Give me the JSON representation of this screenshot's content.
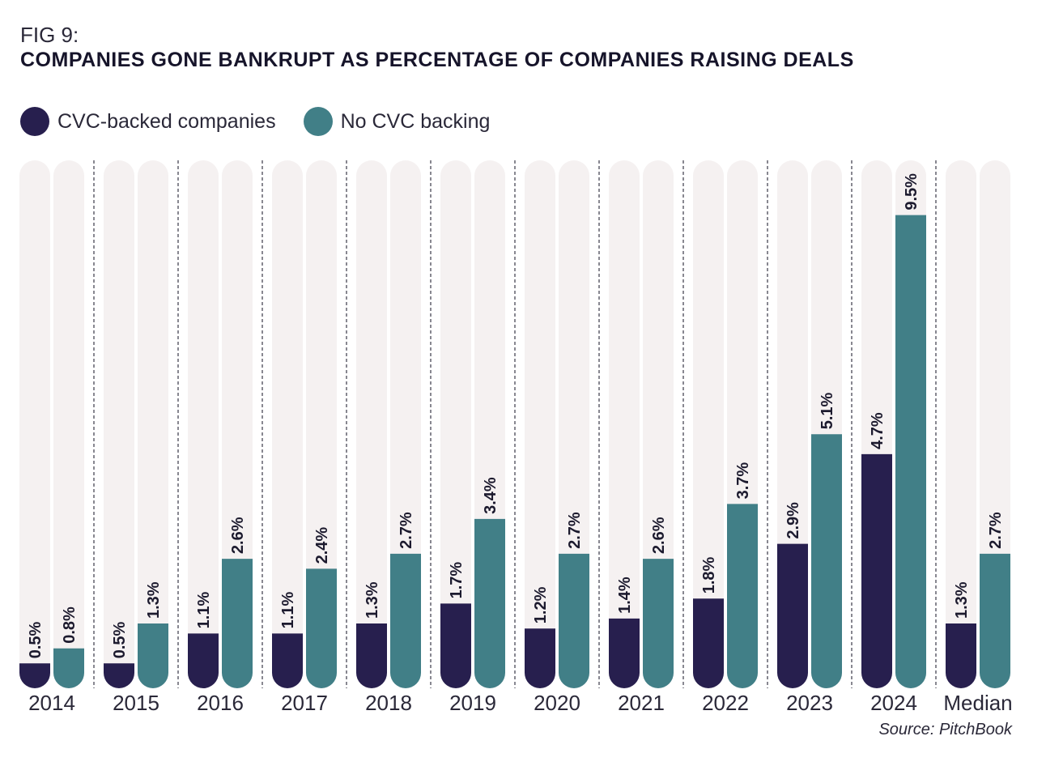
{
  "header": {
    "fig_label": "FIG 9:",
    "title": "COMPANIES GONE BANKRUPT AS PERCENTAGE OF COMPANIES RAISING DEALS"
  },
  "legend": [
    {
      "label": "CVC-backed companies",
      "color": "#271f4e"
    },
    {
      "label": "No CVC backing",
      "color": "#417f87"
    }
  ],
  "source": "Source: PitchBook",
  "chart_data": {
    "type": "bar",
    "categories": [
      "2014",
      "2015",
      "2016",
      "2017",
      "2018",
      "2019",
      "2020",
      "2021",
      "2022",
      "2023",
      "2024",
      "Median"
    ],
    "series": [
      {
        "name": "CVC-backed companies",
        "color": "#271f4e",
        "values": [
          0.5,
          0.5,
          1.1,
          1.1,
          1.3,
          1.7,
          1.2,
          1.4,
          1.8,
          2.9,
          4.7,
          1.3
        ],
        "labels": [
          "0.5%",
          "0.5%",
          "1.1%",
          "1.1%",
          "1.3%",
          "1.7%",
          "1.2%",
          "1.4%",
          "1.8%",
          "2.9%",
          "4.7%",
          "1.3%"
        ]
      },
      {
        "name": "No CVC backing",
        "color": "#417f87",
        "values": [
          0.8,
          1.3,
          2.6,
          2.4,
          2.7,
          3.4,
          2.7,
          2.6,
          3.7,
          5.1,
          9.5,
          2.7
        ],
        "labels": [
          "0.8%",
          "1.3%",
          "2.6%",
          "2.4%",
          "2.7%",
          "3.4%",
          "2.7%",
          "2.6%",
          "3.7%",
          "5.1%",
          "9.5%",
          "2.7%"
        ]
      }
    ],
    "ylim": [
      0,
      10.6
    ],
    "track_color": "#f5f1f1",
    "grid": false,
    "legend_position": "top-left"
  }
}
